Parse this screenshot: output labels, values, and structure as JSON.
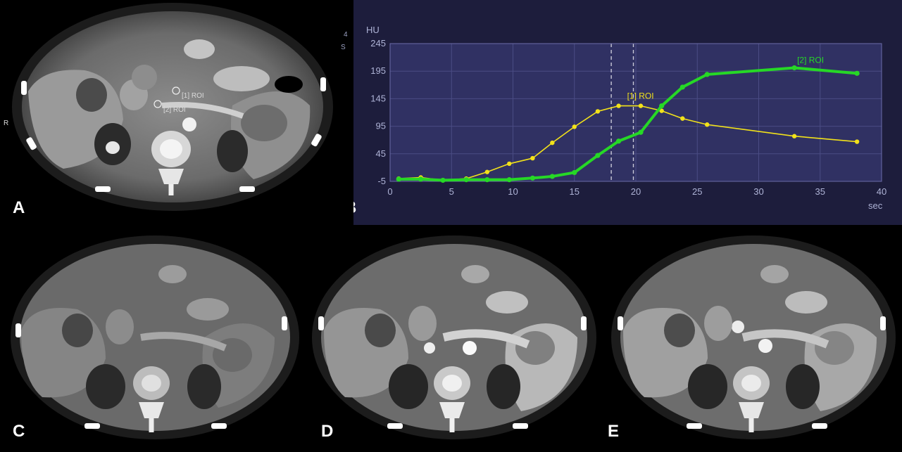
{
  "panels": {
    "a": {
      "label": "A",
      "orientation_marker": "R",
      "roi_labels": [
        "[1] ROI",
        "[2] ROI"
      ],
      "side_text": [
        "4",
        "S"
      ]
    },
    "b": {
      "label": "B"
    },
    "c": {
      "label": "C"
    },
    "d": {
      "label": "D"
    },
    "e": {
      "label": "E"
    }
  },
  "chart_data": {
    "type": "line",
    "title": "",
    "xlabel": "sec",
    "ylabel": "HU",
    "xlim": [
      0,
      40
    ],
    "ylim": [
      -5,
      245
    ],
    "x_ticks": [
      0,
      5,
      10,
      15,
      20,
      25,
      30,
      35,
      40
    ],
    "y_ticks": [
      -5,
      45,
      95,
      145,
      195,
      245
    ],
    "grid": true,
    "vertical_markers": [
      18,
      19.8
    ],
    "series": [
      {
        "name": "[1] ROI",
        "color": "#f2e21a",
        "x": [
          0.7,
          2.5,
          4.3,
          6.2,
          7.9,
          9.7,
          11.6,
          13.2,
          15.0,
          16.9,
          18.6,
          20.4,
          22.1,
          23.8,
          25.8,
          32.9,
          38.0
        ],
        "y": [
          0,
          2,
          -3,
          0,
          12,
          27,
          37,
          65,
          94,
          122,
          132,
          132,
          123,
          109,
          98,
          77,
          67
        ]
      },
      {
        "name": "[2] ROI",
        "color": "#26d826",
        "x": [
          0.7,
          2.5,
          4.3,
          6.2,
          7.9,
          9.7,
          11.6,
          13.2,
          15.0,
          16.9,
          18.6,
          20.4,
          22.1,
          23.8,
          25.8,
          32.9,
          38.0
        ],
        "y": [
          -1,
          -1,
          -3,
          -2,
          -2,
          -2,
          1,
          4,
          11,
          42,
          68,
          84,
          132,
          166,
          189,
          201,
          191
        ]
      }
    ]
  }
}
